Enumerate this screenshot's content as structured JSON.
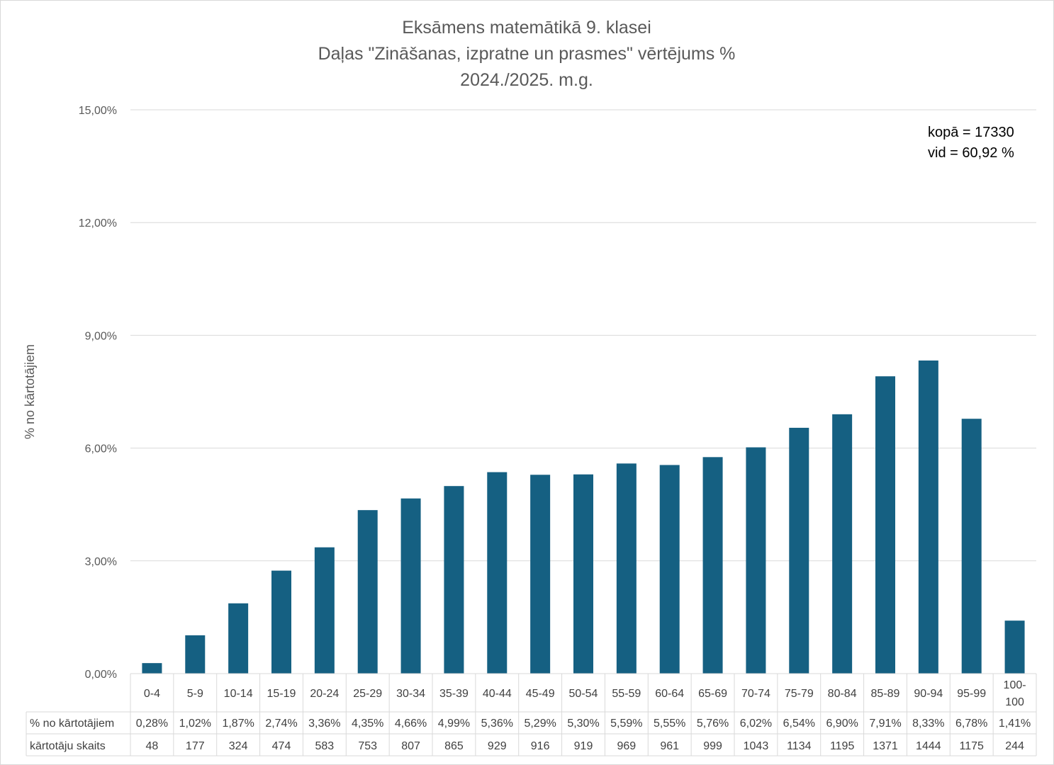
{
  "chart_data": {
    "type": "bar",
    "title": [
      "Eksāmens matemātikā 9. klasei",
      "Daļas \"Zināšanas, izpratne un prasmes\" vērtējums %",
      "2024./2025. m.g."
    ],
    "ylabel": "% no kārtotājiem",
    "xlabel": "",
    "ylim": [
      0,
      15
    ],
    "yticks": [
      0,
      3,
      6,
      9,
      12,
      15
    ],
    "ytick_labels": [
      "0,00%",
      "3,00%",
      "6,00%",
      "9,00%",
      "12,00%",
      "15,00%"
    ],
    "grid": true,
    "bar_color": "#156082",
    "categories": [
      "0-4",
      "5-9",
      "10-14",
      "15-19",
      "20-24",
      "25-29",
      "30-34",
      "35-39",
      "40-44",
      "45-49",
      "50-54",
      "55-59",
      "60-64",
      "65-69",
      "70-74",
      "75-79",
      "80-84",
      "85-89",
      "90-94",
      "95-99",
      "100-100"
    ],
    "values": [
      0.28,
      1.02,
      1.87,
      2.74,
      3.36,
      4.35,
      4.66,
      4.99,
      5.36,
      5.29,
      5.3,
      5.59,
      5.55,
      5.76,
      6.02,
      6.54,
      6.9,
      7.91,
      8.33,
      6.78,
      1.41
    ],
    "table": {
      "rows": [
        {
          "label": "% no kārtotājiem",
          "values": [
            "0,28%",
            "1,02%",
            "1,87%",
            "2,74%",
            "3,36%",
            "4,35%",
            "4,66%",
            "4,99%",
            "5,36%",
            "5,29%",
            "5,30%",
            "5,59%",
            "5,55%",
            "5,76%",
            "6,02%",
            "6,54%",
            "6,90%",
            "7,91%",
            "8,33%",
            "6,78%",
            "1,41%"
          ]
        },
        {
          "label": "kārtotāju skaits",
          "values": [
            "48",
            "177",
            "324",
            "474",
            "583",
            "753",
            "807",
            "865",
            "929",
            "916",
            "919",
            "969",
            "961",
            "999",
            "1043",
            "1134",
            "1195",
            "1371",
            "1444",
            "1175",
            "244"
          ]
        }
      ]
    },
    "annotations": [
      "kopā = 17330",
      "vid = 60,92 %"
    ]
  }
}
